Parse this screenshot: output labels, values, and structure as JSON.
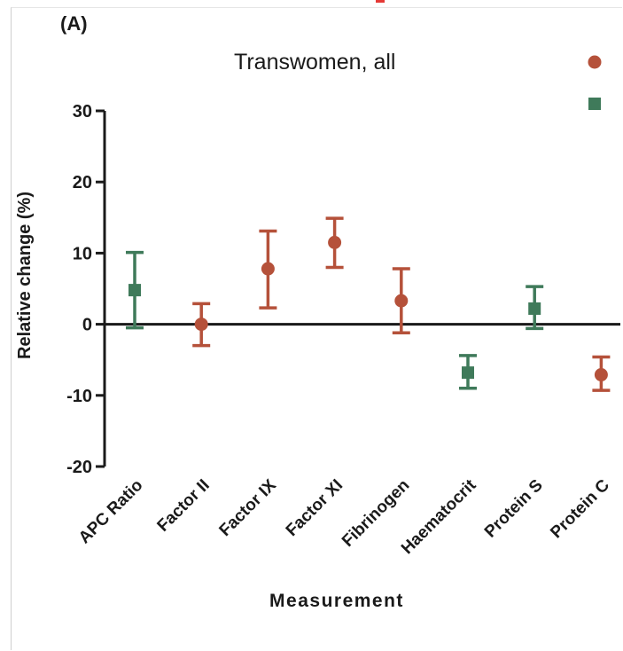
{
  "panel_label": "(A)",
  "colors": {
    "red": "#b5513a",
    "green": "#3f7a5a",
    "axis": "#1a1a1a"
  },
  "legend": {
    "title": "Transwomen, all",
    "entries": [
      {
        "marker": "circle",
        "color": "#b5513a"
      },
      {
        "marker": "square",
        "color": "#3f7a5a"
      }
    ]
  },
  "chart_data": {
    "type": "scatter",
    "title": "Transwomen, all",
    "xlabel": "Measurement",
    "ylabel": "Relative change (%)",
    "ylim": [
      -20,
      30
    ],
    "yticks": [
      -20,
      -10,
      0,
      10,
      20,
      30
    ],
    "categories": [
      "APC Ratio",
      "Factor II",
      "Factor IX",
      "Factor XI",
      "Fibrinogen",
      "Haematocrit",
      "Protein S",
      "Protein C"
    ],
    "points": [
      {
        "category": "APC Ratio",
        "value": 4.8,
        "low": -0.5,
        "high": 10.1,
        "marker": "square",
        "color": "#3f7a5a"
      },
      {
        "category": "Factor II",
        "value": 0.0,
        "low": -3.0,
        "high": 2.9,
        "marker": "circle",
        "color": "#b5513a"
      },
      {
        "category": "Factor IX",
        "value": 7.8,
        "low": 2.3,
        "high": 13.1,
        "marker": "circle",
        "color": "#b5513a"
      },
      {
        "category": "Factor XI",
        "value": 11.5,
        "low": 8.0,
        "high": 14.9,
        "marker": "circle",
        "color": "#b5513a"
      },
      {
        "category": "Fibrinogen",
        "value": 3.3,
        "low": -1.2,
        "high": 7.8,
        "marker": "circle",
        "color": "#b5513a"
      },
      {
        "category": "Haematocrit",
        "value": -6.8,
        "low": -9.0,
        "high": -4.4,
        "marker": "square",
        "color": "#3f7a5a"
      },
      {
        "category": "Protein S",
        "value": 2.2,
        "low": -0.6,
        "high": 5.3,
        "marker": "square",
        "color": "#3f7a5a"
      },
      {
        "category": "Protein C",
        "value": -7.1,
        "low": -9.3,
        "high": -4.6,
        "marker": "circle",
        "color": "#b5513a"
      }
    ]
  }
}
